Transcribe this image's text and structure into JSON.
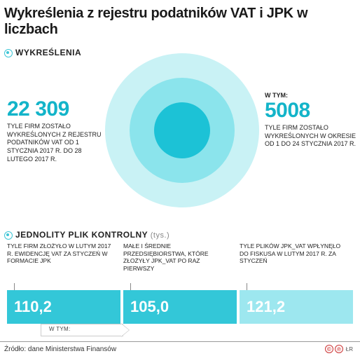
{
  "title": "Wykreślenia z rejestru podatników VAT i JPK w liczbach",
  "colors": {
    "accent": "#13b4c9",
    "ring_outer": "#c9f2f5",
    "ring_mid": "#8be4ec",
    "ring_inner": "#1cc2d6",
    "box_full": "#33c7d8",
    "box_light": "#9de7ef",
    "text": "#1a1a1a",
    "bg": "#ffffff"
  },
  "section1": {
    "label": "WYKREŚLENIA",
    "left": {
      "value": "22 309",
      "text": "TYLE FIRM ZOSTAŁO WYKREŚLONYCH Z REJESTRU PODATNIKÓW VAT OD 1 STYCZNIA 2017 R. DO 28 LUTEGO 2017 R."
    },
    "right": {
      "caption": "W TYM:",
      "value": "5008",
      "text": "TYLE FIRM ZOSTAŁO WYKREŚLONYCH W OKRESIE OD 1 DO 24 STYCZNIA 2017 R."
    },
    "donut": {
      "outer_ratio": 1.0,
      "mid_ratio": 0.68,
      "inner_ratio": 0.36
    }
  },
  "section2": {
    "label": "JEDNOLITY PLIK KONTROLNY",
    "unit": "(tys.)",
    "cols": [
      {
        "caption": "TYLE FIRM ZŁOŻYŁO W LUTYM 2017 R. EWIDENCJĘ VAT ZA STYCZEŃ W FORMACIE JPK",
        "value": "110,2",
        "intensity": "full"
      },
      {
        "caption": "MAŁE I ŚREDNIE PRZEDSIĘBIORSTWA, KTÓRE ZŁOŻYŁY JPK_VAT PO RAZ PIERWSZY",
        "value": "105,0",
        "intensity": "full"
      },
      {
        "caption": "TYLE PLIKÓW JPK_VAT WPŁYNĘŁO DO FISKUSA W LUTYM 2017 R. ZA STYCZEŃ",
        "value": "121,2",
        "intensity": "light"
      }
    ],
    "arrow_label": "W TYM:"
  },
  "footer": {
    "source": "Źródło: dane Ministerstwa Finansów",
    "credit": "ŁR"
  }
}
